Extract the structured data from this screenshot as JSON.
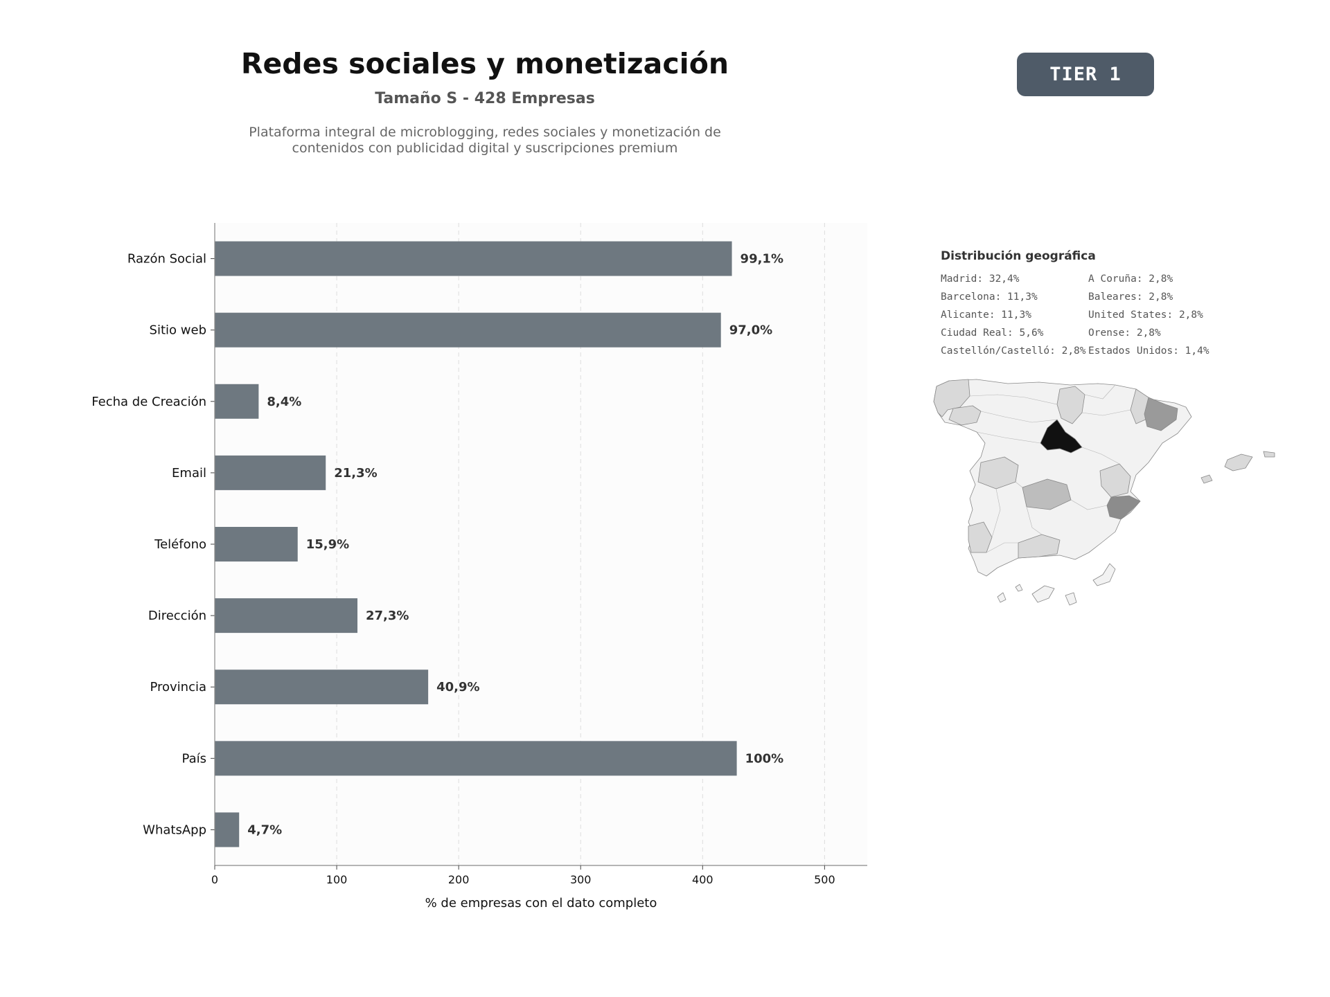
{
  "header": {
    "title": "Redes sociales y monetización",
    "subtitle": "Tamaño S - 428 Empresas",
    "description_line1": "Plataforma integral de microblogging, redes sociales y monetización de",
    "description_line2": "contenidos con publicidad digital y suscripciones premium"
  },
  "badge": {
    "label": "TIER 1"
  },
  "chart_data": {
    "type": "bar",
    "orientation": "horizontal",
    "categories": [
      "Razón Social",
      "Sitio web",
      "Fecha de Creación",
      "Email",
      "Teléfono",
      "Dirección",
      "Provincia",
      "País",
      "WhatsApp"
    ],
    "values": [
      424,
      415,
      36,
      91,
      68,
      117,
      175,
      428,
      20
    ],
    "value_labels": [
      "99,1%",
      "97,0%",
      "8,4%",
      "21,3%",
      "15,9%",
      "27,3%",
      "40,9%",
      "100%",
      "4,7%"
    ],
    "xlabel": "% de empresas con el dato completo",
    "xlim": [
      0,
      535
    ],
    "xticks": [
      0,
      100,
      200,
      300,
      400,
      500
    ],
    "grid": "vertical dashed",
    "bar_color": "#6e7880"
  },
  "geo": {
    "title": "Distribución geográfica",
    "col1": [
      "Madrid: 32,4%",
      "Barcelona: 11,3%",
      "Alicante: 11,3%",
      "Ciudad Real: 5,6%",
      "Castellón/Castelló: 2,8%"
    ],
    "col2": [
      "A Coruña: 2,8%",
      "Baleares: 2,8%",
      "United States: 2,8%",
      "Orense: 2,8%",
      "Estados Unidos: 1,4%"
    ]
  },
  "map": {
    "type": "choropleth",
    "region": "Spain provinces",
    "colors": {
      "madrid": "#111111",
      "barcelona": "#9a9a9a",
      "alicante": "#8c8c8c",
      "ciudad_real": "#bdbdbd",
      "low": "#d9d9d9",
      "none": "#f2f2f2"
    }
  }
}
